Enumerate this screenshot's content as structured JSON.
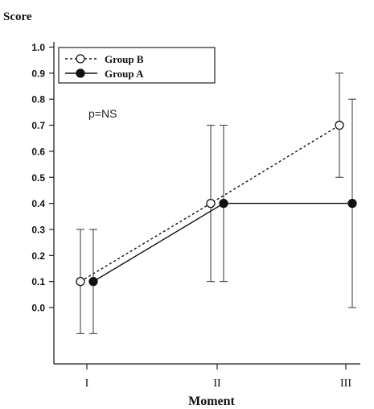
{
  "chart_data": {
    "type": "line",
    "title": "",
    "ylabel": "Score",
    "xlabel": "Moment",
    "categories": [
      "I",
      "II",
      "III"
    ],
    "yticks": [
      "1.0",
      "0.9",
      "0.8",
      "0.7",
      "0.6",
      "0.5",
      "0.4",
      "0.3",
      "0.2",
      "0.1",
      "0.0"
    ],
    "ylim": [
      -0.2,
      1.0
    ],
    "annotation": "p=NS",
    "legend_position": "top-left",
    "grid": false,
    "series": [
      {
        "name": "Group B",
        "marker": "open-circle",
        "line_style": "dotted",
        "values": [
          0.1,
          0.4,
          0.7
        ],
        "error_low": [
          -0.1,
          0.1,
          0.5
        ],
        "error_high": [
          0.3,
          0.7,
          0.9
        ]
      },
      {
        "name": "Group A",
        "marker": "filled-circle",
        "line_style": "solid",
        "values": [
          0.1,
          0.4,
          0.4
        ],
        "error_low": [
          -0.1,
          0.1,
          0.0
        ],
        "error_high": [
          0.3,
          0.7,
          0.8
        ]
      }
    ]
  }
}
